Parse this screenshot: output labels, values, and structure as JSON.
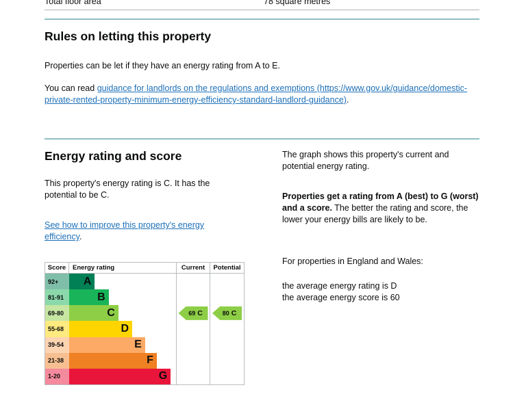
{
  "floor_area_row": {
    "label": "Total floor area",
    "value": "78 square metres"
  },
  "rules": {
    "heading": "Rules on letting this property",
    "intro": "Properties can be let if they have an energy rating from A to E.",
    "read_prefix": "You can read ",
    "link_text": "guidance for landlords on the regulations and exemptions (https://www.gov.uk/guidance/domestic-private-rented-property-minimum-energy-efficiency-standard-landlord-guidance)",
    "read_suffix": "."
  },
  "rating": {
    "heading": "Energy rating and score",
    "summary": "This property's energy rating is C. It has the potential to be C.",
    "improve_link": "See how to improve this property's energy efficiency",
    "improve_suffix": ".",
    "graph_intro": "The graph shows this property's current and potential energy rating.",
    "explain_bold": "Properties get a rating from A (best) to G (worst) and a score.",
    "explain_rest": " The better the rating and score, the lower your energy bills are likely to be.",
    "averages_intro": "For properties in England and Wales:",
    "average_rating_line": "the average energy rating is D",
    "average_score_line": "the average energy score is 60"
  },
  "chart_data": {
    "type": "bar",
    "title": "Energy rating and score (EPC graph)",
    "columns": {
      "score": "Score",
      "rating": "Energy rating",
      "current": "Current",
      "potential": "Potential"
    },
    "bands": [
      {
        "range": "92+",
        "letter": "A",
        "color": "#008054",
        "tint": "#7fbfa9",
        "bar_width_pct": 24
      },
      {
        "range": "81-91",
        "letter": "B",
        "color": "#19b459",
        "tint": "#8bd9ab",
        "bar_width_pct": 37
      },
      {
        "range": "69-80",
        "letter": "C",
        "color": "#8dce46",
        "tint": "#c6e6a2",
        "bar_width_pct": 46
      },
      {
        "range": "55-68",
        "letter": "D",
        "color": "#ffd500",
        "tint": "#ffea7f",
        "bar_width_pct": 59
      },
      {
        "range": "39-54",
        "letter": "E",
        "color": "#fcaa65",
        "tint": "#fdd4b2",
        "bar_width_pct": 71
      },
      {
        "range": "21-38",
        "letter": "F",
        "color": "#ef8023",
        "tint": "#f7bf91",
        "bar_width_pct": 82
      },
      {
        "range": "1-20",
        "letter": "G",
        "color": "#e9153b",
        "tint": "#f48a9d",
        "bar_width_pct": 95
      }
    ],
    "current": {
      "score": "69",
      "letter": "C",
      "band_index": 2,
      "arrow_color": "#8dce46"
    },
    "potential": {
      "score": "80",
      "letter": "C",
      "band_index": 2,
      "arrow_color": "#8dce46"
    }
  },
  "colors": {
    "link_blue": "#1d70b8",
    "divider_teal": "#8fbec3",
    "divider_gray": "#b1b4b6",
    "text": "#0b0c0c"
  }
}
